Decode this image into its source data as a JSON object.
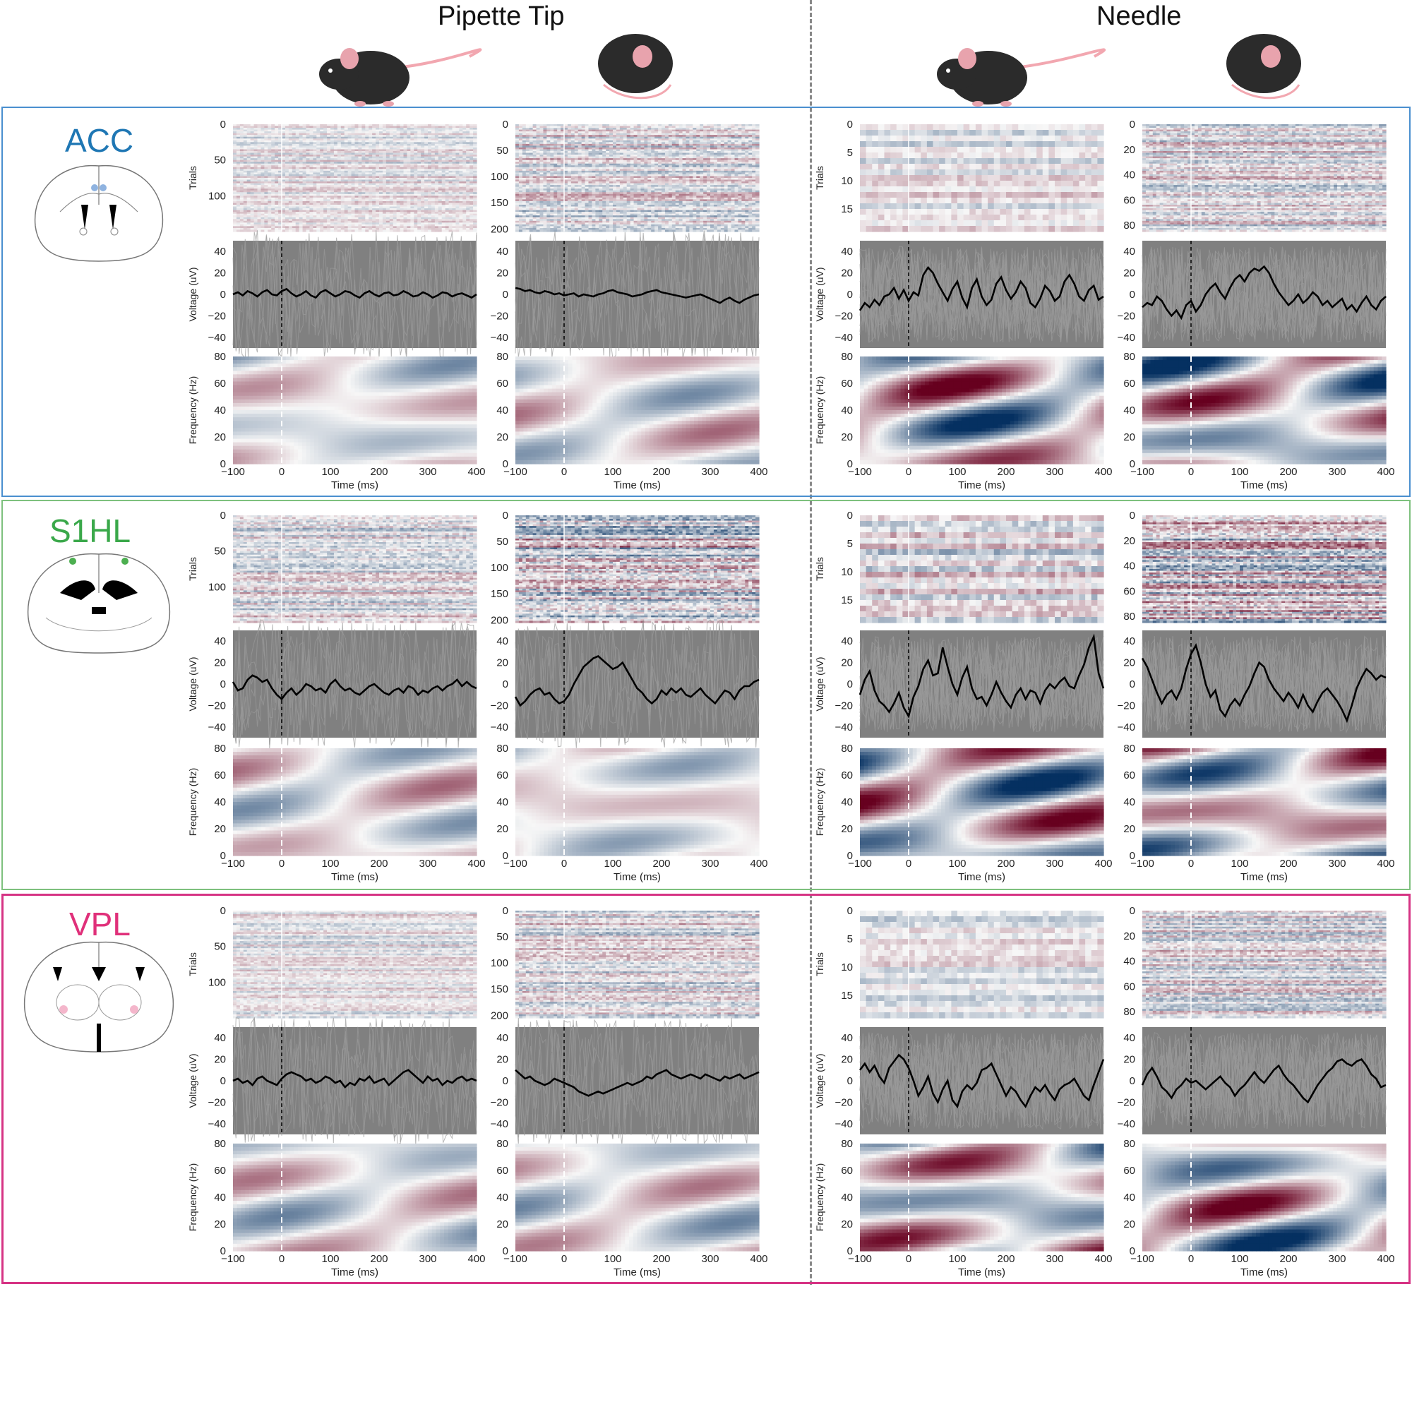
{
  "figure": {
    "columns": [
      "Pipette Tip",
      "Needle"
    ],
    "subcolumns": [
      "awake-mouse-icon",
      "anesthetized-mouse-icon"
    ],
    "rows": [
      {
        "label": "ACC",
        "color": "#1f77b4",
        "border_color": "#4a8fcf",
        "brain_icon": "coronal-section-acc-icon"
      },
      {
        "label": "S1HL",
        "color": "#3aa84a",
        "border_color": "#7ec17e",
        "brain_icon": "coronal-section-s1hl-icon"
      },
      {
        "label": "VPL",
        "color": "#e0307a",
        "border_color": "#d63384",
        "brain_icon": "coronal-section-vpl-icon"
      }
    ],
    "colors": {
      "trace": "#000000",
      "background_trace_panel": "#808080",
      "divider": "#888888",
      "cmap_neg": "#053061",
      "cmap_pos": "#67001f"
    }
  },
  "chart_data": {
    "type": "heatmap",
    "panel_types": [
      "trials-heatmap",
      "voltage-trace",
      "time-frequency-map"
    ],
    "raster": {
      "ylabel": "Trials",
      "pipette_awake_ticks": [
        "0",
        "50",
        "100"
      ],
      "pipette_anesth_ticks": [
        "0",
        "50",
        "100",
        "150",
        "200"
      ],
      "needle_awake_ticks": [
        "0",
        "5",
        "10",
        "15"
      ],
      "needle_anesth_ticks": [
        "0",
        "20",
        "40",
        "60",
        "80"
      ],
      "n_trials": {
        "pipette_awake": 150,
        "pipette_anesth": 205,
        "needle_awake": 19,
        "needle_anesth": 85
      }
    },
    "voltage": {
      "ylabel": "Voltage (uV)",
      "ylim": [
        -50,
        50
      ],
      "yticks": [
        "40",
        "20",
        "0",
        "−20",
        "−40"
      ]
    },
    "tf": {
      "ylabel": "Frequency (Hz)",
      "ylim": [
        0,
        80
      ],
      "yticks": [
        "80",
        "60",
        "40",
        "20",
        "0"
      ]
    },
    "xaxis": {
      "xlabel": "Time (ms)",
      "xlim": [
        -100,
        400
      ],
      "xticks": [
        "−100",
        "0",
        "100",
        "200",
        "300",
        "400"
      ],
      "stimulus_time": 0
    },
    "traces": {
      "ACC": {
        "pipette_awake": [
          0,
          2,
          -1,
          3,
          1,
          -2,
          2,
          4,
          0,
          -1,
          3,
          5,
          1,
          -2,
          0,
          3,
          -1,
          -3,
          2,
          4,
          1,
          -2,
          0,
          3,
          2,
          -1,
          -3,
          1,
          3,
          0,
          -2,
          1,
          2,
          -1,
          0,
          3,
          1,
          -2,
          -1,
          2,
          0,
          -3,
          -1,
          2,
          1,
          -2,
          0,
          1,
          -1,
          -3,
          0
        ],
        "pipette_anesth": [
          6,
          5,
          3,
          4,
          2,
          1,
          3,
          2,
          0,
          1,
          -1,
          0,
          1,
          -2,
          0,
          -1,
          -2,
          0,
          1,
          3,
          4,
          2,
          1,
          0,
          -2,
          -1,
          0,
          2,
          3,
          4,
          2,
          1,
          0,
          -1,
          -2,
          -3,
          -2,
          -1,
          0,
          -2,
          -4,
          -6,
          -8,
          -5,
          -3,
          -6,
          -8,
          -5,
          -3,
          -1,
          0
        ],
        "needle_awake": [
          -15,
          -8,
          -12,
          -5,
          -10,
          -2,
          0,
          6,
          -4,
          4,
          -6,
          2,
          -1,
          18,
          25,
          20,
          10,
          2,
          -6,
          5,
          12,
          -3,
          -12,
          6,
          14,
          -2,
          -10,
          -5,
          10,
          16,
          4,
          -4,
          2,
          12,
          6,
          -8,
          -12,
          -4,
          8,
          3,
          -6,
          -2,
          12,
          18,
          10,
          -2,
          -6,
          4,
          8,
          -5,
          -2
        ],
        "needle_anesth": [
          -12,
          -8,
          -10,
          -2,
          -6,
          -14,
          -20,
          -15,
          -22,
          -10,
          -6,
          -16,
          -10,
          0,
          6,
          10,
          2,
          -4,
          6,
          14,
          18,
          12,
          20,
          24,
          22,
          26,
          20,
          10,
          2,
          -4,
          -10,
          -6,
          0,
          -8,
          -4,
          2,
          -2,
          -10,
          -6,
          -12,
          -8,
          -4,
          -14,
          -10,
          -16,
          -8,
          -2,
          -10,
          -14,
          -6,
          -2
        ]
      },
      "S1HL": {
        "pipette_awake": [
          2,
          -6,
          -4,
          4,
          8,
          6,
          2,
          4,
          -4,
          -10,
          -14,
          -8,
          -4,
          -10,
          -6,
          0,
          -2,
          -6,
          -4,
          -8,
          0,
          4,
          -2,
          -6,
          -4,
          -8,
          -10,
          -6,
          -2,
          0,
          -4,
          -8,
          -10,
          -6,
          -4,
          -8,
          -2,
          -4,
          -10,
          -6,
          -8,
          -4,
          -2,
          -6,
          -2,
          0,
          4,
          -2,
          2,
          -2,
          -4
        ],
        "pipette_anesth": [
          -12,
          -20,
          -16,
          -10,
          -6,
          -4,
          -10,
          -8,
          -14,
          -18,
          -16,
          -10,
          0,
          8,
          16,
          20,
          24,
          26,
          22,
          18,
          14,
          16,
          20,
          12,
          4,
          -4,
          -8,
          -14,
          -18,
          -14,
          -6,
          -10,
          -4,
          -8,
          -4,
          -10,
          -12,
          -8,
          -4,
          -10,
          -14,
          -18,
          -12,
          -6,
          -8,
          -14,
          -6,
          -2,
          -2,
          2,
          4
        ],
        "needle_awake": [
          -10,
          4,
          12,
          -6,
          -16,
          -20,
          -26,
          -18,
          -8,
          -22,
          -30,
          -12,
          -2,
          14,
          22,
          8,
          10,
          34,
          16,
          0,
          -10,
          6,
          16,
          -4,
          -14,
          -12,
          -20,
          -10,
          2,
          -8,
          -16,
          -22,
          -10,
          -4,
          -14,
          -6,
          -8,
          -18,
          -6,
          0,
          -4,
          2,
          6,
          -2,
          -4,
          8,
          18,
          34,
          44,
          10,
          -4
        ],
        "needle_anesth": [
          24,
          16,
          4,
          -8,
          -18,
          -10,
          -6,
          -14,
          -4,
          14,
          28,
          36,
          20,
          0,
          -12,
          -6,
          -24,
          -30,
          -20,
          -14,
          -20,
          -10,
          -2,
          10,
          20,
          16,
          4,
          -4,
          -10,
          -16,
          -8,
          -14,
          -22,
          -10,
          -20,
          -26,
          -16,
          -8,
          -4,
          -10,
          -16,
          -24,
          -34,
          -20,
          -4,
          6,
          14,
          10,
          4,
          8,
          6
        ],
        "_note": ""
      },
      "VPL": {
        "pipette_awake": [
          0,
          2,
          -2,
          0,
          -4,
          2,
          4,
          0,
          -2,
          -4,
          2,
          6,
          8,
          6,
          4,
          0,
          2,
          -2,
          0,
          4,
          2,
          -2,
          0,
          -6,
          -2,
          -4,
          2,
          0,
          4,
          -2,
          0,
          2,
          -4,
          0,
          4,
          8,
          10,
          6,
          2,
          -2,
          4,
          0,
          2,
          -4,
          0,
          -2,
          2,
          4,
          0,
          2,
          0
        ],
        "pipette_anesth": [
          10,
          6,
          2,
          4,
          0,
          -2,
          -4,
          -2,
          2,
          0,
          -2,
          -4,
          -6,
          -10,
          -12,
          -14,
          -12,
          -10,
          -12,
          -10,
          -8,
          -6,
          -4,
          -2,
          -4,
          -2,
          0,
          4,
          2,
          6,
          8,
          10,
          6,
          4,
          2,
          4,
          6,
          4,
          2,
          6,
          4,
          2,
          0,
          4,
          2,
          4,
          6,
          2,
          4,
          6,
          8
        ],
        "needle_awake": [
          10,
          16,
          8,
          14,
          4,
          -2,
          12,
          18,
          24,
          20,
          12,
          0,
          -14,
          -6,
          4,
          -12,
          -20,
          -8,
          0,
          -18,
          -24,
          -10,
          -4,
          -8,
          -2,
          10,
          12,
          16,
          6,
          -4,
          -14,
          -6,
          -10,
          -18,
          -24,
          -14,
          -6,
          -10,
          -4,
          -12,
          -18,
          -8,
          -4,
          -2,
          2,
          -6,
          -14,
          -18,
          -4,
          8,
          20
        ],
        "needle_anesth": [
          -4,
          6,
          12,
          4,
          -6,
          -10,
          -16,
          -8,
          -4,
          2,
          -2,
          0,
          -4,
          -8,
          -4,
          0,
          4,
          -2,
          -6,
          -14,
          -8,
          -4,
          2,
          8,
          2,
          -2,
          4,
          10,
          14,
          6,
          0,
          -4,
          -10,
          -16,
          -20,
          -12,
          -4,
          2,
          8,
          12,
          18,
          20,
          16,
          14,
          18,
          20,
          14,
          6,
          2,
          -6,
          -4
        ]
      }
    }
  }
}
